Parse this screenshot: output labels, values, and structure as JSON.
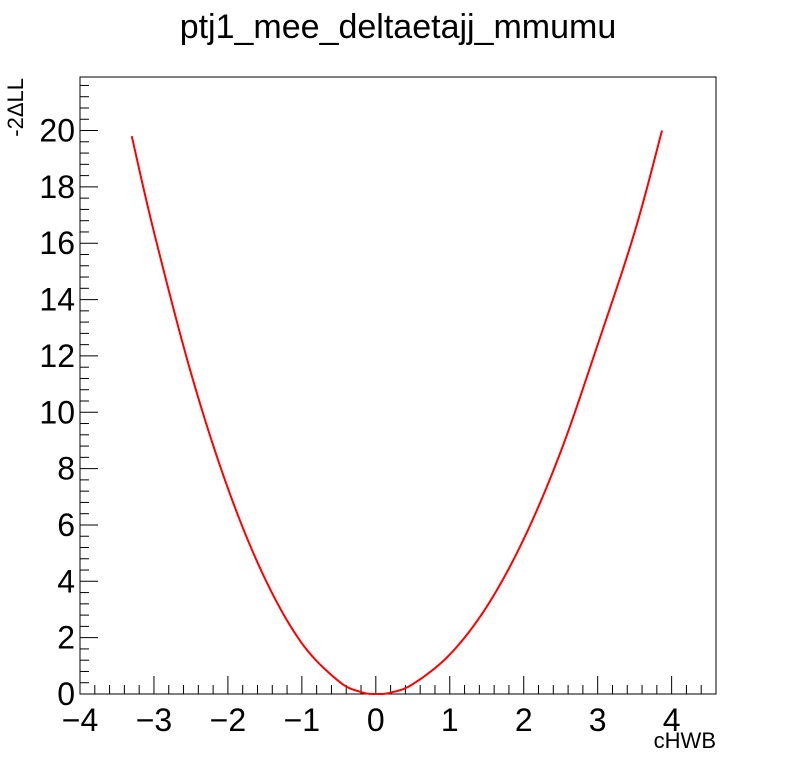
{
  "chart_data": {
    "type": "line",
    "title": "ptj1_mee_deltaetajj_mmumu",
    "xlabel": "cHWB",
    "ylabel": "-2ΔLL",
    "xlim": [
      -4,
      4.6
    ],
    "ylim": [
      0,
      21.9
    ],
    "grid": false,
    "legend": "none",
    "xticks": [
      -4,
      -3,
      -2,
      -1,
      0,
      1,
      2,
      3,
      4
    ],
    "xtick_labels": [
      "−4",
      "−3",
      "−2",
      "−1",
      "0",
      "1",
      "2",
      "3",
      "4"
    ],
    "yticks": [
      0,
      2,
      4,
      6,
      8,
      10,
      12,
      14,
      16,
      18,
      20
    ],
    "ytick_labels": [
      "0",
      "2",
      "4",
      "6",
      "8",
      "10",
      "12",
      "14",
      "16",
      "18",
      "20"
    ],
    "series": [
      {
        "color": "#ff0000",
        "x": [
          -3.3,
          -3.0,
          -2.5,
          -2.0,
          -1.5,
          -1.0,
          -0.5,
          -0.2,
          0.0,
          0.2,
          0.5,
          1.0,
          1.5,
          2.0,
          2.5,
          3.0,
          3.5,
          3.87
        ],
        "y": [
          19.8,
          16.4,
          11.4,
          7.3,
          4.1,
          1.8,
          0.45,
          0.07,
          0.0,
          0.05,
          0.35,
          1.4,
          3.1,
          5.5,
          8.6,
          12.4,
          16.4,
          20.0
        ]
      }
    ]
  }
}
